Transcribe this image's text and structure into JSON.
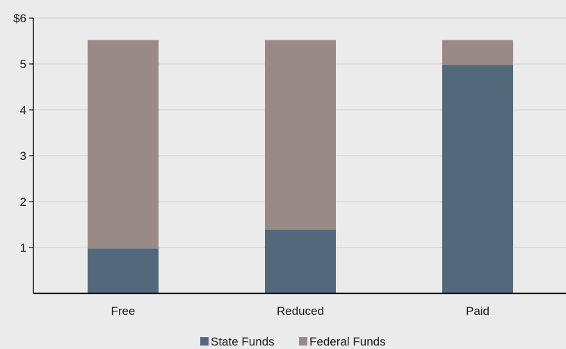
{
  "chart_data": {
    "type": "bar",
    "stacked": true,
    "categories": [
      "Free",
      "Reduced",
      "Paid"
    ],
    "series": [
      {
        "name": "State Funds",
        "values": [
          0.98,
          1.39,
          4.98
        ],
        "color": "#53687a"
      },
      {
        "name": "Federal Funds",
        "values": [
          4.54,
          4.13,
          0.54
        ],
        "color": "#9a8a85"
      }
    ],
    "y_ticks": [
      {
        "value": 1,
        "label": "1"
      },
      {
        "value": 2,
        "label": "2"
      },
      {
        "value": 3,
        "label": "3"
      },
      {
        "value": 4,
        "label": "4"
      },
      {
        "value": 5,
        "label": "5"
      },
      {
        "value": 6,
        "label": "$6"
      }
    ],
    "ylim": [
      0,
      6
    ],
    "grid": true,
    "legend_position": "bottom-center",
    "background_color": "#ebebeb",
    "grid_color": "#d2d2d2",
    "axis_color": "#111111"
  }
}
